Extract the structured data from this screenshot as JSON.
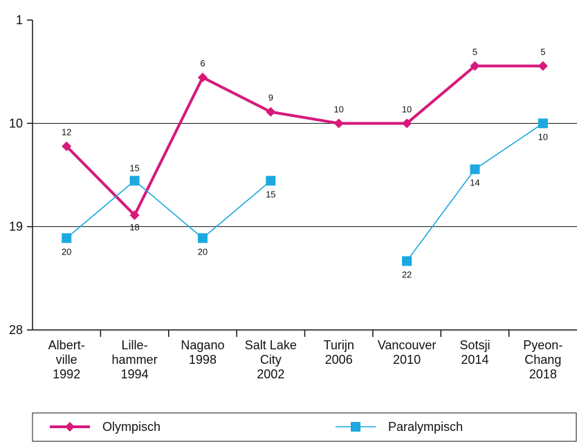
{
  "chart_data": {
    "type": "line",
    "categories": [
      [
        "Albert-",
        "ville",
        "1992"
      ],
      [
        "Lille-",
        "hammer",
        "1994"
      ],
      [
        "Nagano",
        "1998"
      ],
      [
        "Salt Lake",
        "City",
        "2002"
      ],
      [
        "Turijn",
        "2006"
      ],
      [
        "Vancouver",
        "2010"
      ],
      [
        "Sotsji",
        "2014"
      ],
      [
        "Pyeon-",
        "Chang",
        "2018"
      ]
    ],
    "series": [
      {
        "name": "Olympisch",
        "color": "#d6197b",
        "marker": "diamond",
        "values": [
          12,
          18,
          6,
          9,
          10,
          10,
          5,
          5
        ]
      },
      {
        "name": "Paralympisch",
        "color": "#1ba9e0",
        "marker": "square",
        "values": [
          20,
          15,
          20,
          15,
          null,
          22,
          14,
          10
        ]
      }
    ],
    "ylim": [
      1,
      28
    ],
    "y_inverted": true,
    "yticks": [
      1,
      10,
      19,
      28
    ],
    "grid": true
  }
}
